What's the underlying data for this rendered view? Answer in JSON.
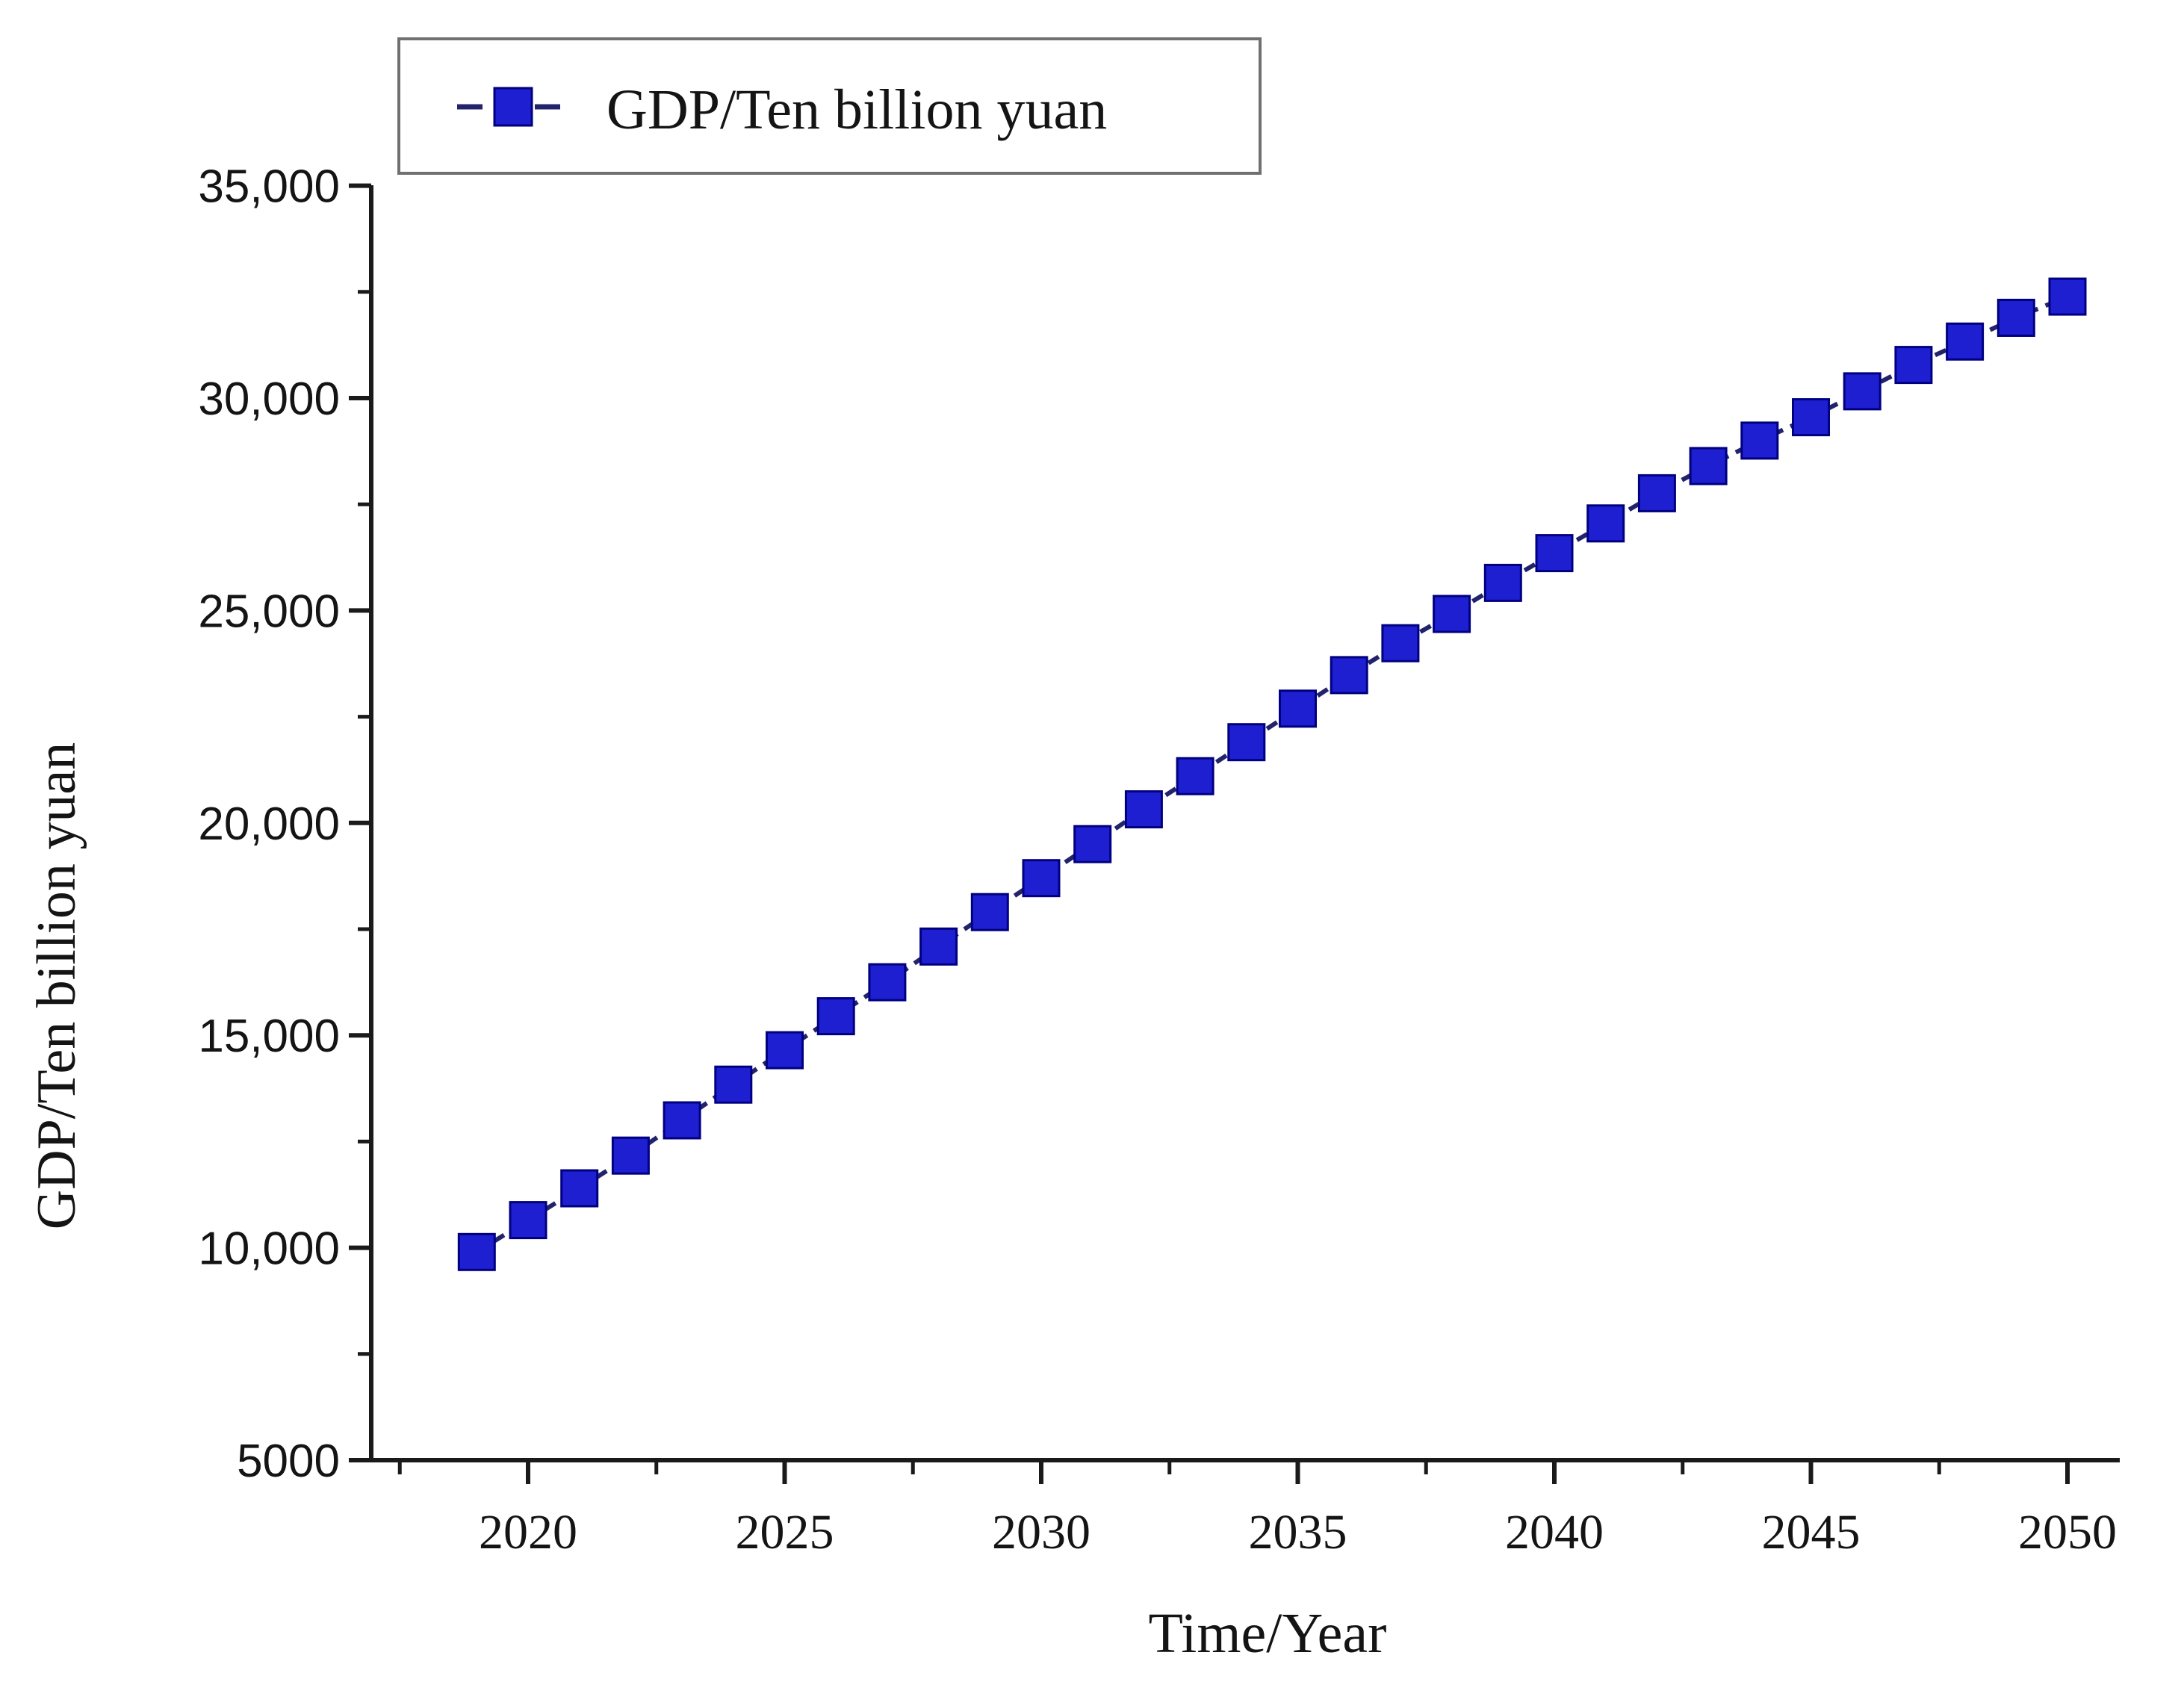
{
  "chart_data": {
    "type": "line",
    "title": "",
    "xlabel": "Time/Year",
    "ylabel": "GDP/Ten billion yuan",
    "legend": {
      "label": "GDP/Ten billion yuan",
      "position": "top-left",
      "marker": "filled-square",
      "line_style": "dashed"
    },
    "x": [
      2019,
      2020,
      2021,
      2022,
      2023,
      2024,
      2025,
      2026,
      2027,
      2028,
      2029,
      2030,
      2031,
      2032,
      2033,
      2034,
      2035,
      2036,
      2037,
      2038,
      2039,
      2040,
      2041,
      2042,
      2043,
      2044,
      2045,
      2046,
      2047,
      2048,
      2049,
      2050
    ],
    "series": [
      {
        "name": "GDP/Ten billion yuan",
        "values": [
          9900,
          10650,
          11400,
          12170,
          13000,
          13840,
          14650,
          15450,
          16250,
          17090,
          17900,
          18700,
          19500,
          20320,
          21100,
          21900,
          22690,
          23480,
          24230,
          24920,
          25650,
          26350,
          27050,
          27760,
          28400,
          29000,
          29550,
          30160,
          30780,
          31330,
          31890,
          32390
        ]
      }
    ],
    "xlim": [
      2017,
      2051
    ],
    "ylim": [
      5000,
      35000
    ],
    "grid": false,
    "xticks": [
      {
        "value": 2020,
        "label": "2020"
      },
      {
        "value": 2025,
        "label": "2025"
      },
      {
        "value": 2030,
        "label": "2030"
      },
      {
        "value": 2035,
        "label": "2035"
      },
      {
        "value": 2040,
        "label": "2040"
      },
      {
        "value": 2045,
        "label": "2045"
      },
      {
        "value": 2050,
        "label": "2050"
      }
    ],
    "xminorticks": [
      2017.5,
      2022.5,
      2027.5,
      2032.5,
      2037.5,
      2042.5,
      2047.5
    ],
    "yticks": [
      {
        "value": 35000,
        "label": "35,000"
      },
      {
        "value": 30000,
        "label": "30,000"
      },
      {
        "value": 25000,
        "label": "25,000"
      },
      {
        "value": 20000,
        "label": "20,000"
      },
      {
        "value": 15000,
        "label": "15,000"
      },
      {
        "value": 10000,
        "label": "10,000"
      },
      {
        "value": 5000,
        "label": "5000"
      }
    ],
    "yminorticks": [
      32500,
      27500,
      22500,
      17500,
      12500,
      7500
    ],
    "colors": {
      "marker_fill": "#1f1fd2",
      "marker_edge": "#000080",
      "line": "#23236b",
      "axis": "#1a1a1a",
      "text": "#141414",
      "legend_border": "#707070",
      "background": "#ffffff"
    }
  }
}
